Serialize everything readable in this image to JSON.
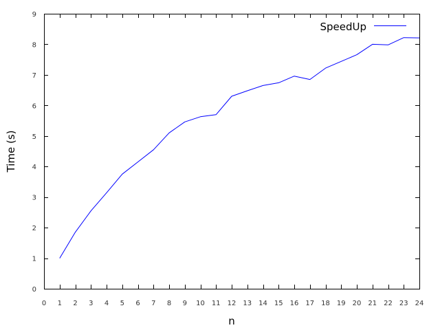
{
  "chart_data": {
    "type": "line",
    "title": "",
    "xlabel": "n",
    "ylabel": "Time (s)",
    "xlim": [
      0,
      24
    ],
    "ylim": [
      0,
      9
    ],
    "x_ticks": [
      "0",
      "1",
      "2",
      "3",
      "4",
      "5",
      "6",
      "7",
      "8",
      "9",
      "10",
      "11",
      "12",
      "13",
      "14",
      "15",
      "16",
      "17",
      "18",
      "19",
      "20",
      "21",
      "22",
      "23",
      "24"
    ],
    "y_ticks": [
      "0",
      "1",
      "2",
      "3",
      "4",
      "5",
      "6",
      "7",
      "8",
      "9"
    ],
    "grid": false,
    "legend_position": "top-right",
    "series": [
      {
        "name": "SpeedUp",
        "color": "#0000ff",
        "x": [
          1,
          2,
          3,
          4,
          5,
          6,
          7,
          8,
          9,
          10,
          11,
          12,
          13,
          14,
          15,
          16,
          17,
          18,
          19,
          20,
          21,
          22,
          23,
          24
        ],
        "values": [
          1.0,
          1.85,
          2.55,
          3.14,
          3.75,
          4.15,
          4.55,
          5.1,
          5.46,
          5.63,
          5.7,
          6.3,
          6.48,
          6.65,
          6.74,
          6.96,
          6.85,
          7.22,
          7.44,
          7.66,
          8.0,
          7.98,
          8.22,
          8.21
        ]
      }
    ]
  }
}
